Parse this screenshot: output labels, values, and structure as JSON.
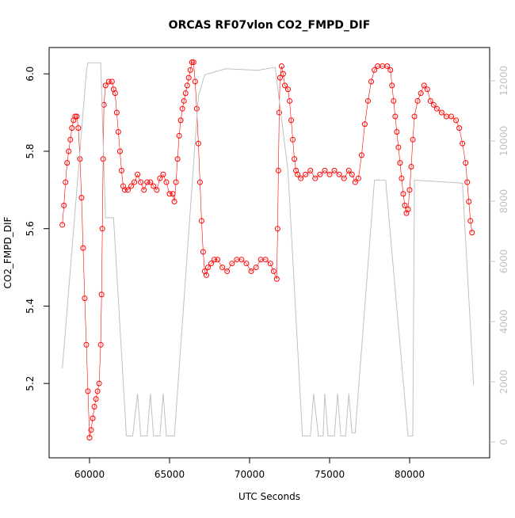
{
  "chart_data": {
    "type": "scatter",
    "title": "ORCAS RF07vlon CO2_FMPD_DIF",
    "xlabel": "UTC Seconds",
    "ylabel": "CO2_FMPD_DIF",
    "xlim": [
      57475,
      85000
    ],
    "xticks": [
      60000,
      65000,
      70000,
      75000,
      80000
    ],
    "ylim": [
      5.008,
      6.068
    ],
    "yticks": [
      5.2,
      5.4,
      5.6,
      5.8,
      {
        "value": 6,
        "label": "6.0"
      }
    ],
    "y2lim": [
      -526,
      13105
    ],
    "y2ticks": [
      0,
      2000,
      4000,
      6000,
      8000,
      10000,
      12000
    ],
    "y2color": "#c0c0c0",
    "series": [
      {
        "color": "red",
        "marker": "circle",
        "x": [
          58300,
          58400,
          58500,
          58600,
          58700,
          58800,
          58900,
          59000,
          59100,
          59200,
          59300,
          59400,
          59500,
          59600,
          59700,
          59800,
          59900,
          60000,
          60100,
          60200,
          60300,
          60400,
          60500,
          60600,
          60700,
          60750,
          60800,
          60850,
          60900,
          61000,
          61200,
          61400,
          61500,
          61600,
          61700,
          61800,
          61900,
          62000,
          62100,
          62200,
          62400,
          62600,
          62800,
          63000,
          63200,
          63400,
          63600,
          63800,
          64000,
          64200,
          64400,
          64600,
          64800,
          65000,
          65200,
          65300,
          65400,
          65500,
          65600,
          65700,
          65800,
          65900,
          66000,
          66100,
          66200,
          66300,
          66400,
          66500,
          66600,
          66700,
          66800,
          66900,
          67000,
          67100,
          67200,
          67300,
          67400,
          67600,
          67800,
          68000,
          68300,
          68600,
          68900,
          69200,
          69500,
          69800,
          70100,
          70400,
          70700,
          71000,
          71300,
          71500,
          71700,
          71750,
          71800,
          71850,
          71900,
          72000,
          72100,
          72200,
          72400,
          72500,
          72600,
          72700,
          72800,
          72900,
          73000,
          73200,
          73500,
          73800,
          74100,
          74400,
          74700,
          75000,
          75300,
          75600,
          75900,
          76200,
          76400,
          76600,
          76800,
          77000,
          77200,
          77400,
          77600,
          77800,
          78000,
          78300,
          78600,
          78800,
          78900,
          79000,
          79100,
          79200,
          79300,
          79400,
          79500,
          79600,
          79700,
          79800,
          79900,
          80000,
          80100,
          80200,
          80300,
          80500,
          80700,
          80900,
          81100,
          81300,
          81500,
          81700,
          82000,
          82300,
          82600,
          82900,
          83100,
          83300,
          83500,
          83600,
          83700,
          83800,
          83900
        ],
        "values": [
          5.61,
          5.66,
          5.72,
          5.77,
          5.8,
          5.83,
          5.86,
          5.88,
          5.89,
          5.89,
          5.86,
          5.78,
          5.68,
          5.55,
          5.42,
          5.3,
          5.18,
          5.06,
          5.08,
          5.11,
          5.14,
          5.16,
          5.18,
          5.2,
          5.3,
          5.43,
          5.6,
          5.78,
          5.92,
          5.97,
          5.98,
          5.98,
          5.96,
          5.95,
          5.9,
          5.85,
          5.8,
          5.75,
          5.71,
          5.7,
          5.7,
          5.71,
          5.72,
          5.74,
          5.72,
          5.7,
          5.72,
          5.72,
          5.71,
          5.7,
          5.73,
          5.74,
          5.72,
          5.69,
          5.69,
          5.67,
          5.72,
          5.78,
          5.84,
          5.88,
          5.91,
          5.93,
          5.95,
          5.97,
          5.99,
          6.01,
          6.03,
          6.03,
          5.98,
          5.91,
          5.82,
          5.72,
          5.62,
          5.54,
          5.49,
          5.48,
          5.5,
          5.51,
          5.52,
          5.52,
          5.5,
          5.49,
          5.51,
          5.52,
          5.52,
          5.51,
          5.49,
          5.5,
          5.52,
          5.52,
          5.51,
          5.49,
          5.47,
          5.6,
          5.75,
          5.9,
          5.99,
          6.02,
          6.0,
          5.97,
          5.96,
          5.93,
          5.88,
          5.83,
          5.78,
          5.75,
          5.74,
          5.73,
          5.74,
          5.75,
          5.73,
          5.74,
          5.75,
          5.74,
          5.75,
          5.74,
          5.73,
          5.75,
          5.74,
          5.72,
          5.73,
          5.79,
          5.87,
          5.93,
          5.98,
          6.01,
          6.02,
          6.02,
          6.02,
          6.01,
          5.97,
          5.93,
          5.89,
          5.85,
          5.81,
          5.77,
          5.73,
          5.69,
          5.66,
          5.64,
          5.65,
          5.7,
          5.76,
          5.83,
          5.89,
          5.93,
          5.95,
          5.97,
          5.96,
          5.93,
          5.92,
          5.91,
          5.9,
          5.89,
          5.89,
          5.88,
          5.86,
          5.82,
          5.77,
          5.72,
          5.67,
          5.62,
          5.59
        ]
      },
      {
        "color": "#c0c0c0",
        "marker": "none",
        "axis": "y2",
        "x": [
          58300,
          59800,
          59900,
          60700,
          61000,
          61500,
          62300,
          62700,
          63000,
          63200,
          63600,
          63800,
          64000,
          64400,
          64600,
          64800,
          65300,
          66800,
          67200,
          68500,
          70500,
          71600,
          72400,
          73300,
          73800,
          74000,
          74300,
          74600,
          74700,
          74900,
          75300,
          75500,
          75700,
          76000,
          76200,
          76400,
          76600,
          77800,
          78500,
          79900,
          80200,
          80300,
          83300,
          84000
        ],
        "values": [
          2450,
          12300,
          12600,
          12600,
          7450,
          7450,
          200,
          200,
          1600,
          200,
          200,
          1600,
          200,
          200,
          1600,
          200,
          200,
          11500,
          12200,
          12400,
          12350,
          12450,
          9000,
          200,
          200,
          1600,
          200,
          200,
          1600,
          200,
          200,
          1600,
          200,
          200,
          1600,
          300,
          300,
          8700,
          8700,
          200,
          200,
          8700,
          8600,
          1900
        ]
      }
    ]
  }
}
